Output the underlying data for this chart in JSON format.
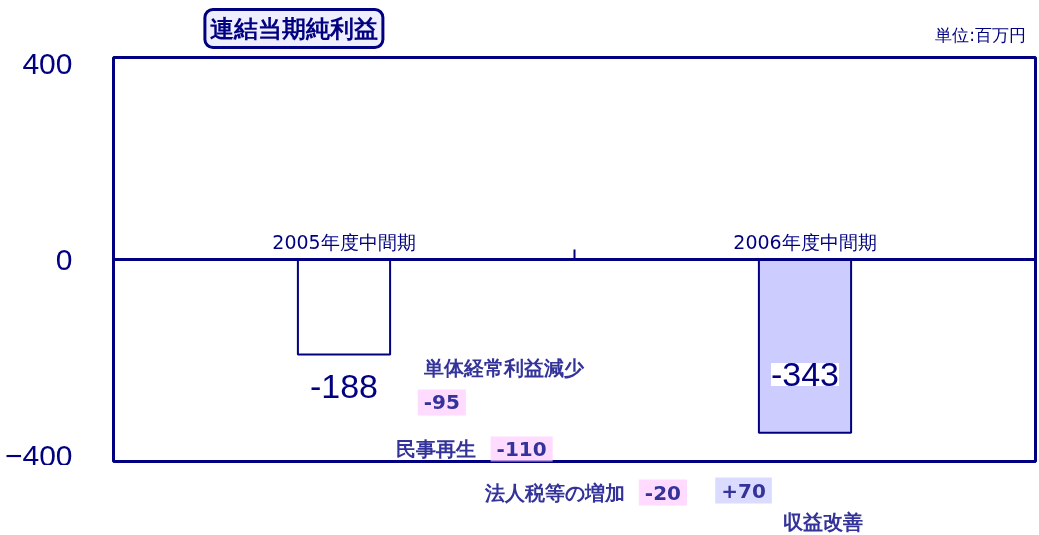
{
  "chart_data": {
    "type": "bar",
    "title": "連結当期純利益",
    "categories": [
      "2005年度中間期",
      "2006年度中間期"
    ],
    "values": [
      -188,
      -343
    ],
    "colors": [
      "#ffffff",
      "#ccccff"
    ],
    "data_labels": true,
    "ylim": [
      -400,
      400
    ],
    "yticks": [
      -400,
      0,
      400
    ],
    "grid": false,
    "annotations": [
      "単位:百万円",
      "単体経常利益減少",
      "-95",
      "民事再生",
      "-110",
      "法人税等の増加",
      "-20",
      "+70",
      "収益改善"
    ]
  }
}
